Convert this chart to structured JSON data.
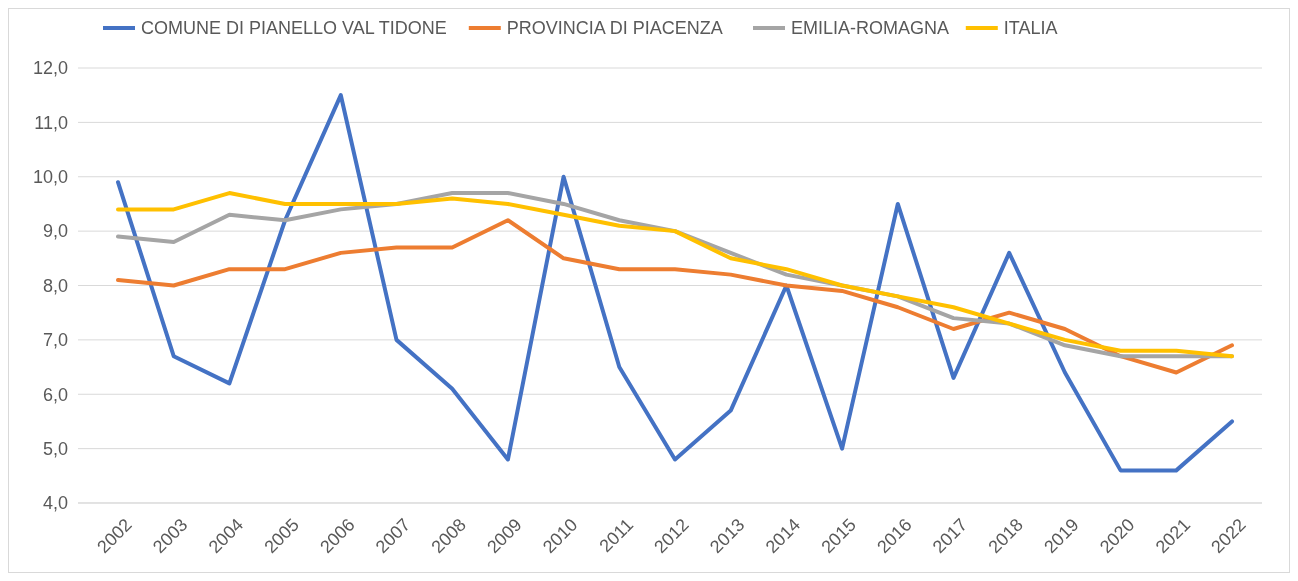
{
  "chart_data": {
    "type": "line",
    "categories": [
      "2002",
      "2003",
      "2004",
      "2005",
      "2006",
      "2007",
      "2008",
      "2009",
      "2010",
      "2011",
      "2012",
      "2013",
      "2014",
      "2015",
      "2016",
      "2017",
      "2018",
      "2019",
      "2020",
      "2021",
      "2022"
    ],
    "series": [
      {
        "name": "COMUNE DI PIANELLO VAL TIDONE",
        "color": "#4472c4",
        "values": [
          9.9,
          6.7,
          6.2,
          9.2,
          11.5,
          7.0,
          6.1,
          4.8,
          10.0,
          6.5,
          4.8,
          5.7,
          8.0,
          5.0,
          9.5,
          6.3,
          8.6,
          6.4,
          4.6,
          4.6,
          5.5
        ]
      },
      {
        "name": "PROVINCIA DI PIACENZA",
        "color": "#ed7d31",
        "values": [
          8.1,
          8.0,
          8.3,
          8.3,
          8.6,
          8.7,
          8.7,
          9.2,
          8.5,
          8.3,
          8.3,
          8.2,
          8.0,
          7.9,
          7.6,
          7.2,
          7.5,
          7.2,
          6.7,
          6.4,
          6.9
        ]
      },
      {
        "name": "EMILIA-ROMAGNA",
        "color": "#a5a5a5",
        "values": [
          8.9,
          8.8,
          9.3,
          9.2,
          9.4,
          9.5,
          9.7,
          9.7,
          9.5,
          9.2,
          9.0,
          8.6,
          8.2,
          8.0,
          7.8,
          7.4,
          7.3,
          6.9,
          6.7,
          6.7,
          6.7
        ]
      },
      {
        "name": "ITALIA",
        "color": "#ffc000",
        "values": [
          9.4,
          9.4,
          9.7,
          9.5,
          9.5,
          9.5,
          9.6,
          9.5,
          9.3,
          9.1,
          9.0,
          8.5,
          8.3,
          8.0,
          7.8,
          7.6,
          7.3,
          7.0,
          6.8,
          6.8,
          6.7
        ]
      }
    ],
    "ylim": [
      4,
      12
    ],
    "yticks": [
      {
        "value": 4,
        "label": "4,0"
      },
      {
        "value": 5,
        "label": "5,0"
      },
      {
        "value": 6,
        "label": "6,0"
      },
      {
        "value": 7,
        "label": "7,0"
      },
      {
        "value": 8,
        "label": "8,0"
      },
      {
        "value": 9,
        "label": "9,0"
      },
      {
        "value": 10,
        "label": "10,0"
      },
      {
        "value": 11,
        "label": "11,0"
      },
      {
        "value": 12,
        "label": "12,0"
      }
    ],
    "grid": "y",
    "legend": "top",
    "marker": "none",
    "line_style": "solid"
  }
}
